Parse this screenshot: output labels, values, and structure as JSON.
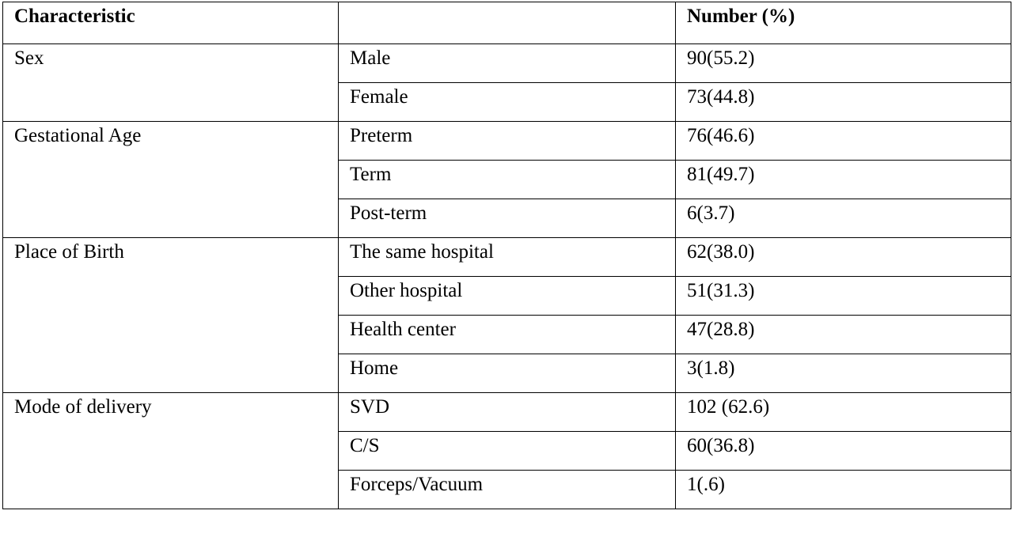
{
  "table": {
    "header": {
      "characteristic": "Characteristic",
      "number": "Number (%)"
    },
    "groups": [
      {
        "label": "Sex",
        "rows": [
          [
            "Male",
            "90(55.2)"
          ],
          [
            "Female",
            "73(44.8)"
          ]
        ]
      },
      {
        "label": "Gestational Age",
        "rows": [
          [
            "Preterm",
            "76(46.6)"
          ],
          [
            "Term",
            "81(49.7)"
          ],
          [
            "Post-term",
            "6(3.7)"
          ]
        ]
      },
      {
        "label": "Place of Birth",
        "rows": [
          [
            "The same hospital",
            "62(38.0)"
          ],
          [
            "Other hospital",
            "51(31.3)"
          ],
          [
            "Health center",
            "47(28.8)"
          ],
          [
            "Home",
            "3(1.8)"
          ]
        ]
      },
      {
        "label": "Mode of delivery",
        "rows": [
          [
            "SVD",
            "102 (62.6)"
          ],
          [
            "C/S",
            "60(36.8)"
          ],
          [
            "Forceps/Vacuum",
            "1(.6)"
          ]
        ]
      }
    ]
  }
}
